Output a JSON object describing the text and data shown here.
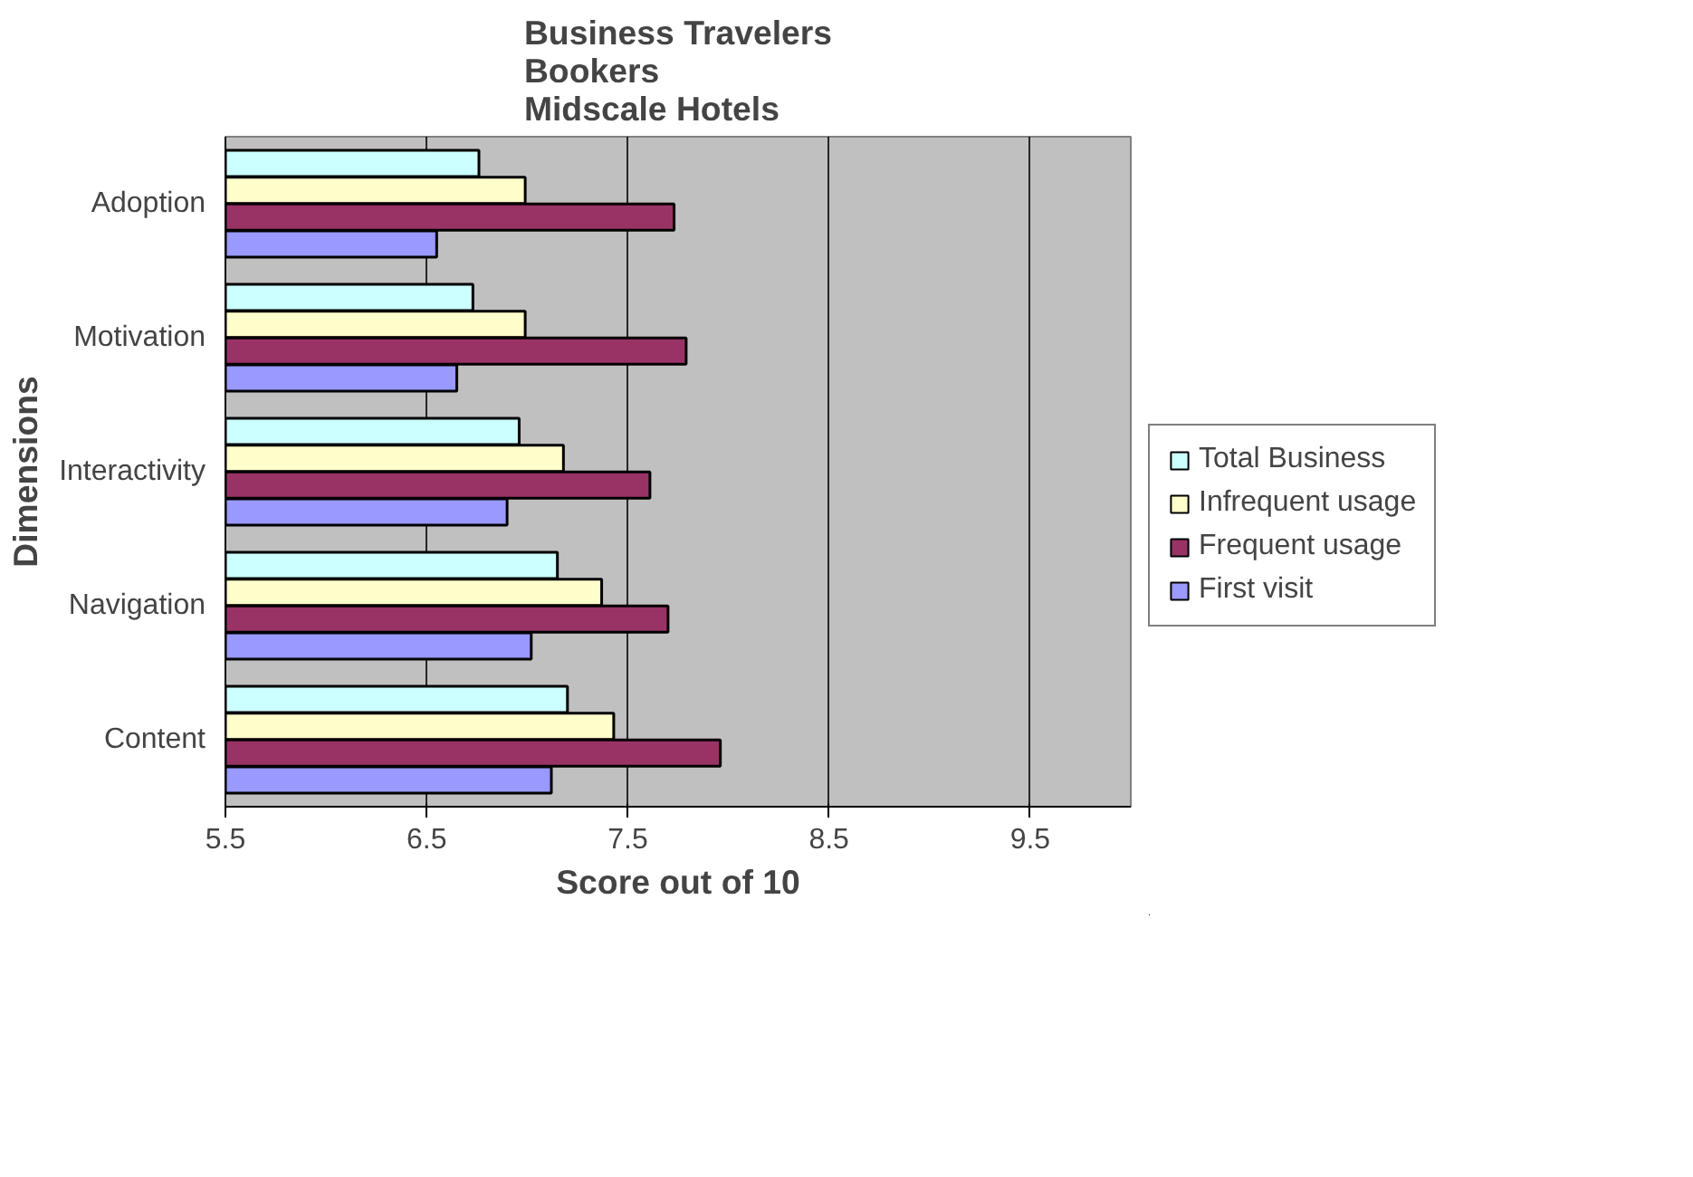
{
  "chart_data": {
    "type": "bar",
    "orientation": "horizontal",
    "title": "Business Travelers\nBookers\nMidscale Hotels",
    "xlabel": "Score out of 10",
    "ylabel": "Dimensions",
    "categories": [
      "Adoption",
      "Motivation",
      "Interactivity",
      "Navigation",
      "Content"
    ],
    "series": [
      {
        "name": "Total Business",
        "color": "#ccffff",
        "values": [
          6.76,
          6.73,
          6.96,
          7.15,
          7.2
        ]
      },
      {
        "name": "Infrequent usage",
        "color": "#ffffcc",
        "values": [
          6.99,
          6.99,
          7.18,
          7.37,
          7.43
        ]
      },
      {
        "name": "Frequent usage",
        "color": "#993366",
        "values": [
          7.73,
          7.79,
          7.61,
          7.7,
          7.96
        ]
      },
      {
        "name": "First visit",
        "color": "#9999ff",
        "values": [
          6.55,
          6.65,
          6.9,
          7.02,
          7.12
        ]
      }
    ],
    "xlim": [
      5.5,
      10
    ],
    "xticks": [
      5.5,
      6.5,
      7.5,
      8.5,
      9.5
    ],
    "grid": "x",
    "legend": "right"
  }
}
